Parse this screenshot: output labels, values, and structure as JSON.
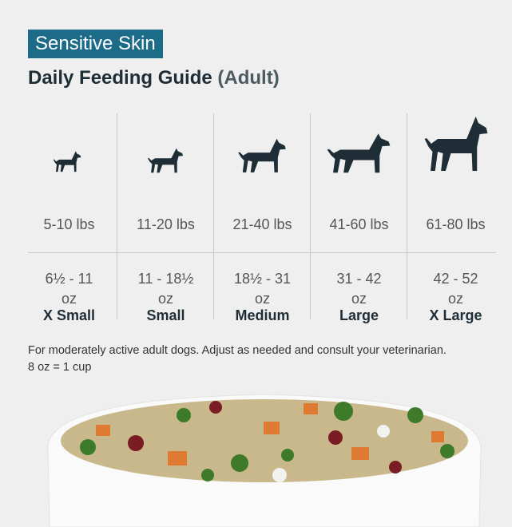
{
  "header": {
    "badge": "Sensitive Skin",
    "title": "Daily Feeding Guide",
    "title_suffix": "(Adult)"
  },
  "table": {
    "columns": [
      {
        "size": "X Small",
        "weight": "5-10 lbs",
        "amount": "6½ - 11",
        "unit": "oz"
      },
      {
        "size": "Small",
        "weight": "11-20 lbs",
        "amount": "11 - 18½",
        "unit": "oz"
      },
      {
        "size": "Medium",
        "weight": "21-40 lbs",
        "amount": "18½ - 31",
        "unit": "oz"
      },
      {
        "size": "Large",
        "weight": "41-60 lbs",
        "amount": "31 - 42",
        "unit": "oz"
      },
      {
        "size": "X Large",
        "weight": "61-80 lbs",
        "amount": "42 - 52",
        "unit": "oz"
      }
    ]
  },
  "footnote": {
    "lines": [
      "For moderately active adult dogs. Adjust as needed and consult your veterinarian.",
      "8 oz = 1 cup"
    ]
  }
}
